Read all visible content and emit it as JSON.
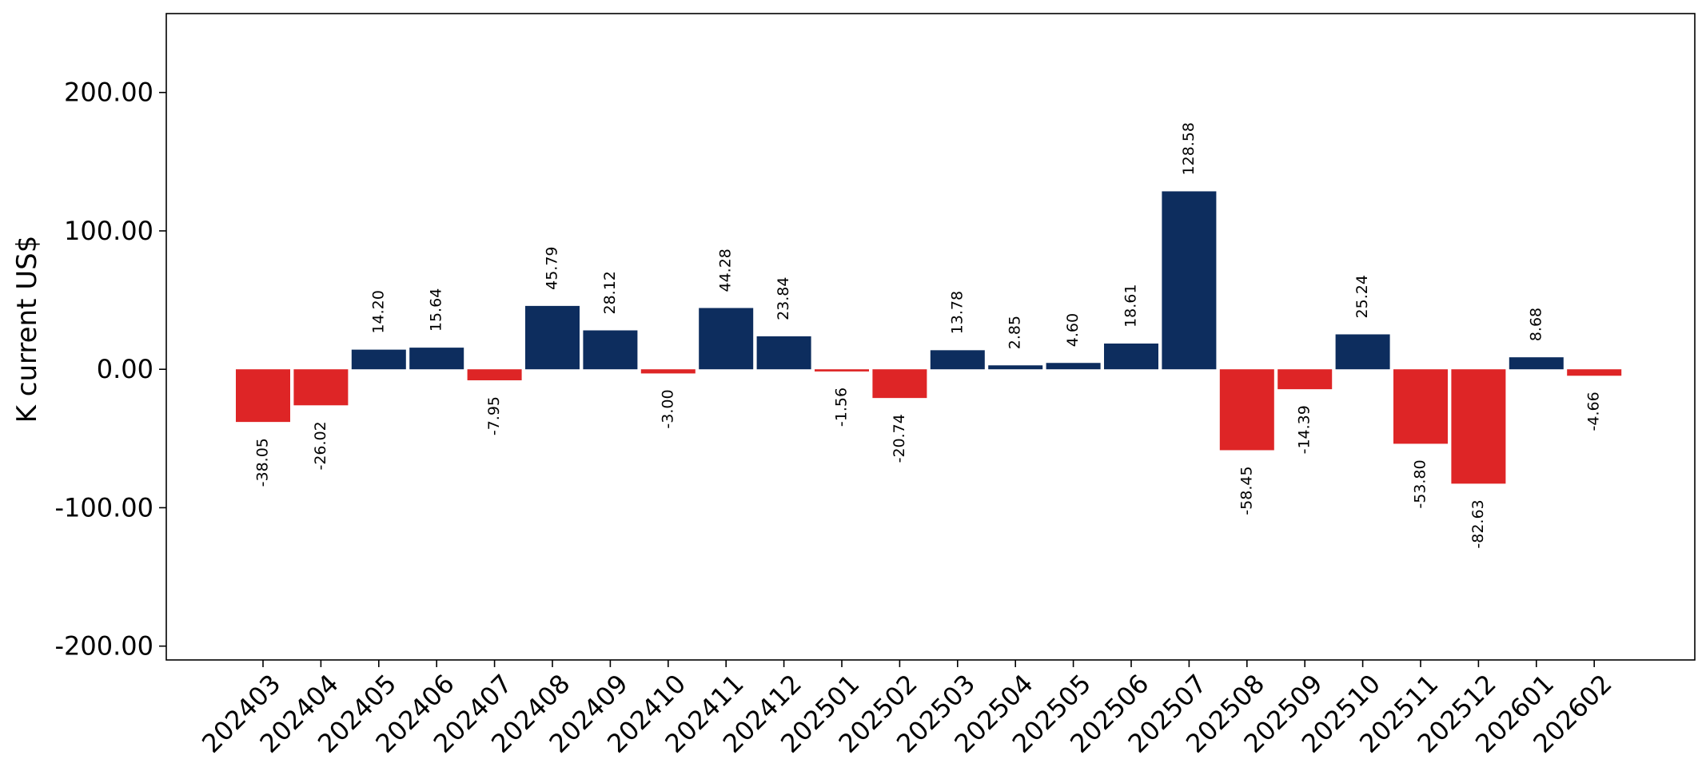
{
  "chart_data": {
    "type": "bar",
    "title": "",
    "xlabel": "",
    "ylabel": "K current US$",
    "ylim": [
      -210,
      257
    ],
    "yticks": [
      -200,
      -100,
      0,
      100,
      200
    ],
    "ytick_labels": [
      "-200.00",
      "-100.00",
      "0.00",
      "100.00",
      "200.00"
    ],
    "grid": false,
    "legend": "none",
    "colors": {
      "positive": "#0d2d5e",
      "negative": "#de2526"
    },
    "categories": [
      "202403",
      "202404",
      "202405",
      "202406",
      "202407",
      "202408",
      "202409",
      "202410",
      "202411",
      "202412",
      "202501",
      "202502",
      "202503",
      "202504",
      "202505",
      "202506",
      "202507",
      "202508",
      "202509",
      "202510",
      "202511",
      "202512",
      "202601",
      "202602"
    ],
    "values": [
      -38.05,
      -26.02,
      14.2,
      15.64,
      -7.95,
      45.79,
      28.12,
      -3.0,
      44.28,
      23.84,
      -1.56,
      -20.74,
      13.78,
      2.85,
      4.6,
      18.61,
      128.58,
      -58.45,
      -14.39,
      25.24,
      -53.8,
      -82.63,
      8.68,
      -4.66
    ],
    "data_labels": [
      "-38.05",
      "-26.02",
      "14.20",
      "15.64",
      "-7.95",
      "45.79",
      "28.12",
      "-3.00",
      "44.28",
      "23.84",
      "-1.56",
      "-20.74",
      "13.78",
      "2.85",
      "4.60",
      "18.61",
      "128.58",
      "-58.45",
      "-14.39",
      "25.24",
      "-53.80",
      "-82.63",
      "8.68",
      "-4.66"
    ]
  }
}
